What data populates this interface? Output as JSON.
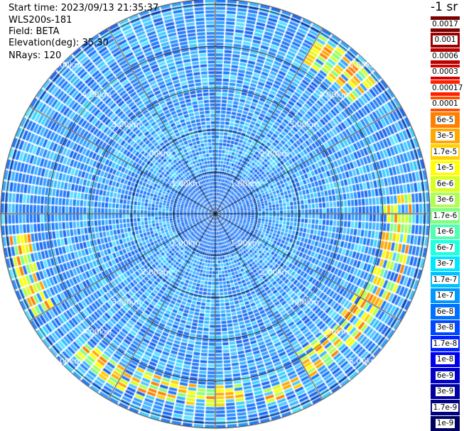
{
  "header": {
    "start_time": "Start time: 2023/09/13 21:35:37",
    "instrument": "WLS200s-181",
    "field": "Field: BETA",
    "elevation": "Elevation(deg): 35.30",
    "nrays": "NRays: 120"
  },
  "ppi": {
    "range_ring_labels": [
      "1.00km",
      "2.00km",
      "3.00km",
      "4.00km",
      "5.00km"
    ]
  },
  "colorbar": {
    "unit": "-1 sr",
    "entries": [
      {
        "label": "0.0017",
        "color": "#7a0000",
        "text_color": "#000000"
      },
      {
        "label": "0.001",
        "color": "#9a0000",
        "text_color": "#000000"
      },
      {
        "label": "0.0006",
        "color": "#b80000",
        "text_color": "#000000"
      },
      {
        "label": "0.0003",
        "color": "#d80000",
        "text_color": "#000000"
      },
      {
        "label": "0.00017",
        "color": "#ff2000",
        "text_color": "#000000"
      },
      {
        "label": "0.0001",
        "color": "#ff5000",
        "text_color": "#000000"
      },
      {
        "label": "6e-5",
        "color": "#ff8000",
        "text_color": "#000000"
      },
      {
        "label": "3e-5",
        "color": "#ffa800",
        "text_color": "#000000"
      },
      {
        "label": "1.7e-5",
        "color": "#ffd000",
        "text_color": "#000000"
      },
      {
        "label": "1e-5",
        "color": "#ffff00",
        "text_color": "#000000"
      },
      {
        "label": "6e-6",
        "color": "#d8ff20",
        "text_color": "#000000"
      },
      {
        "label": "3e-6",
        "color": "#b0ff50",
        "text_color": "#000000"
      },
      {
        "label": "1.7e-6",
        "color": "#80ff80",
        "text_color": "#000000"
      },
      {
        "label": "1e-6",
        "color": "#50ffb0",
        "text_color": "#000000"
      },
      {
        "label": "6e-7",
        "color": "#20ffe0",
        "text_color": "#000000"
      },
      {
        "label": "3e-7",
        "color": "#00e8ff",
        "text_color": "#000000"
      },
      {
        "label": "1.7e-7",
        "color": "#00c0ff",
        "text_color": "#000000"
      },
      {
        "label": "1e-7",
        "color": "#0098ff",
        "text_color": "#000000"
      },
      {
        "label": "6e-8",
        "color": "#0070ff",
        "text_color": "#000000"
      },
      {
        "label": "3e-8",
        "color": "#0048ff",
        "text_color": "#000000"
      },
      {
        "label": "1.7e-8",
        "color": "#0020ff",
        "text_color": "#ffffff"
      },
      {
        "label": "1e-8",
        "color": "#0000ee",
        "text_color": "#ffffff"
      },
      {
        "label": "6e-9",
        "color": "#0000c8",
        "text_color": "#ffffff"
      },
      {
        "label": "3e-9",
        "color": "#0000a0",
        "text_color": "#ffffff"
      },
      {
        "label": "1.7e-9",
        "color": "#000080",
        "text_color": "#ffffff"
      },
      {
        "label": "1e-9",
        "color": "#000060",
        "text_color": "#ffffff"
      }
    ]
  }
}
